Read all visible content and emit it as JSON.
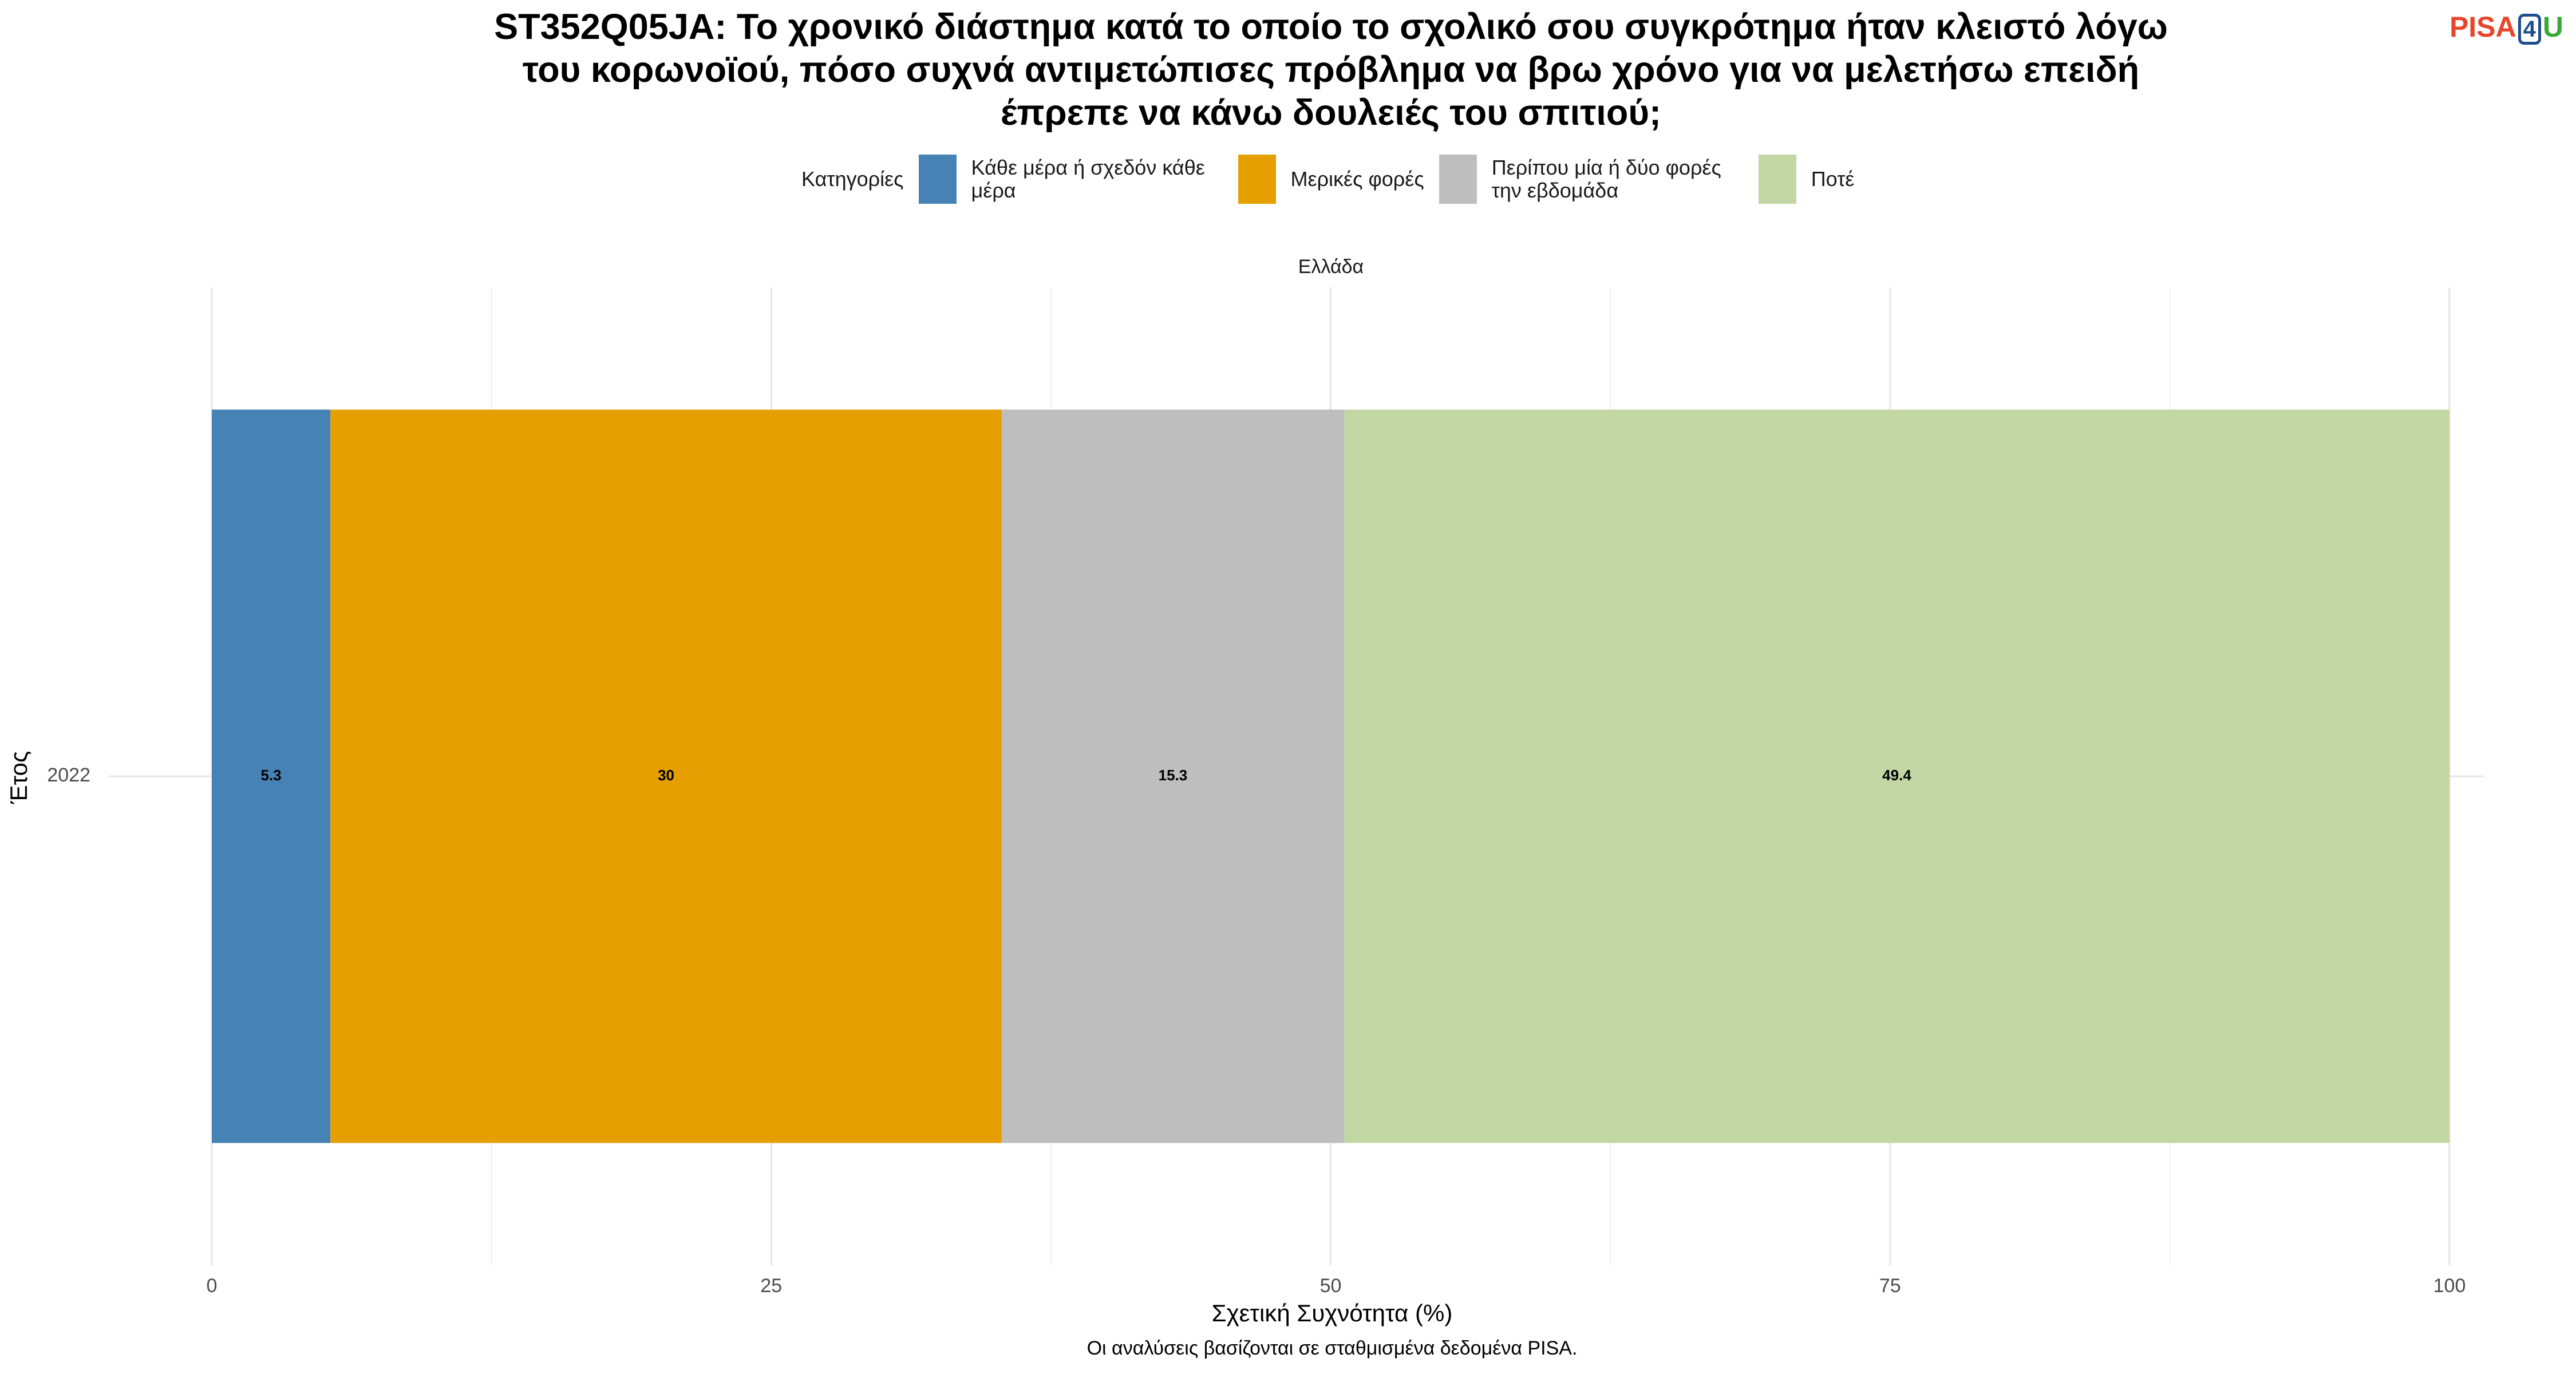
{
  "chart_data": {
    "type": "stacked-bar-horizontal",
    "title": "ST352Q05JA: Το χρονικό διάστημα κατά το οποίο το σχολικό σου συγκρότημα ήταν κλειστό λόγω του κορωνοϊού, πόσο συχνά αντιμετώπισες πρόβλημα να βρω χρόνο για να μελετήσω επειδή έπρεπε να κάνω δουλειές του σπιτιού;",
    "legend_title": "Κατηγορίες",
    "facet": "Ελλάδα",
    "categories": [
      "2022"
    ],
    "series": [
      {
        "name": "Κάθε μέρα ή σχεδόν κάθε μέρα",
        "color": "#4682b4",
        "values": [
          5.3
        ]
      },
      {
        "name": "Μερικές φορές",
        "color": "#e5a000",
        "values": [
          30
        ]
      },
      {
        "name": "Περίπου μία ή δύο φορές την εβδομάδα",
        "color": "#bebebe",
        "values": [
          15.3
        ]
      },
      {
        "name": "Ποτέ",
        "color": "#c3d7a4",
        "values": [
          49.4
        ]
      }
    ],
    "xlim": [
      0,
      100
    ],
    "xticks": [
      0,
      25,
      50,
      75,
      100
    ],
    "grid": true,
    "xlabel": "Σχετική Συχνότητα (%)",
    "ylabel": "Έτος",
    "caption": "Οι αναλύσεις βασίζονται σε σταθμισμένα δεδομένα PISA."
  },
  "logo": {
    "part1": "PISA",
    "part2": "4",
    "part3": "U"
  }
}
